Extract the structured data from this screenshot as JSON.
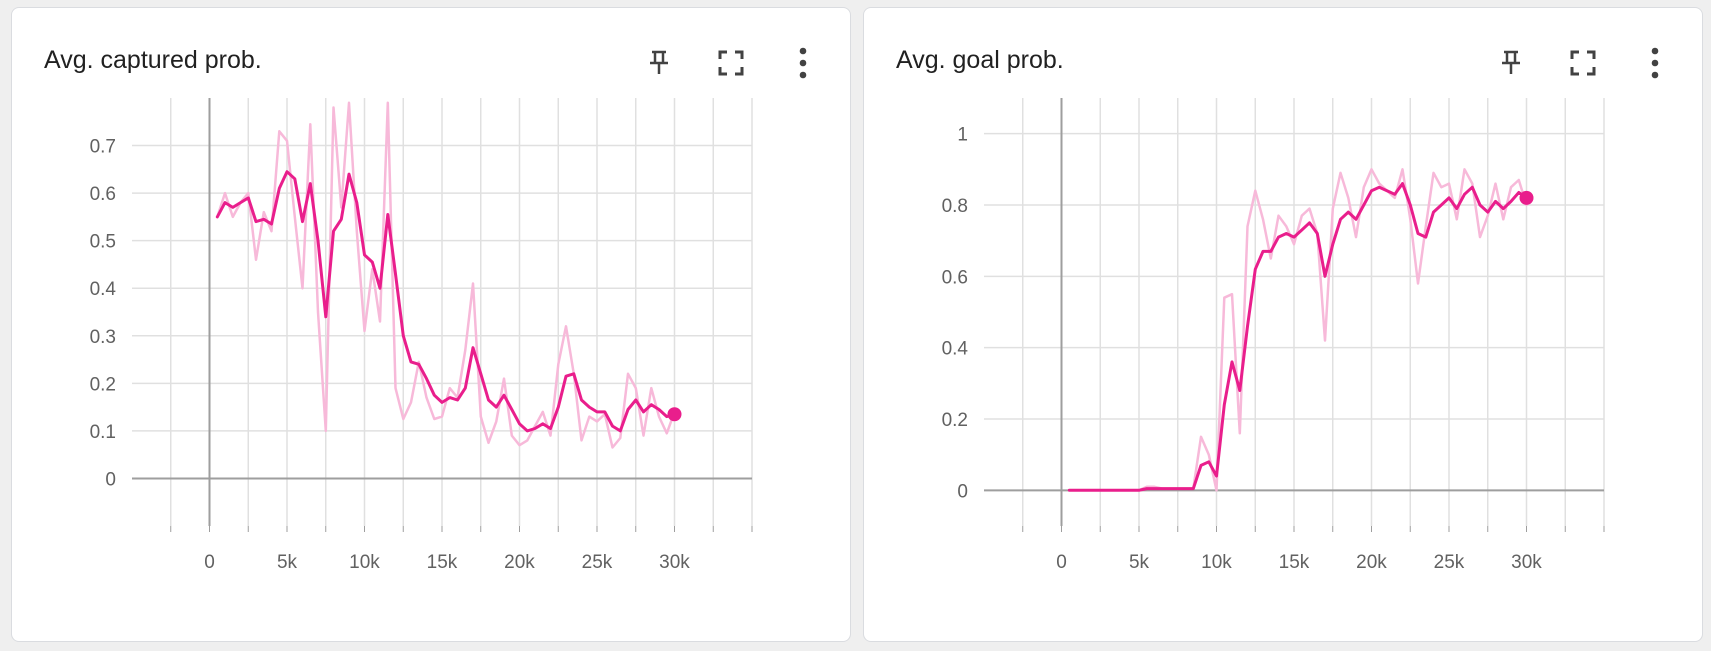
{
  "colors": {
    "raw": "#f7b9d9",
    "smoothed": "#e91e8c",
    "grid": "#e0e0e0",
    "axis": "#9e9e9e",
    "text": "#616161"
  },
  "icons": {
    "pin": "pin-icon",
    "fullscreen": "fullscreen-icon",
    "more": "more-vert-icon"
  },
  "chart_data": [
    {
      "type": "line",
      "title": "Avg. captured prob.",
      "xlim": [
        -5000,
        35000
      ],
      "ylim": [
        -0.1,
        0.8
      ],
      "x_ticks": [
        0,
        5000,
        10000,
        15000,
        20000,
        25000,
        30000
      ],
      "x_tick_labels": [
        "0",
        "5k",
        "10k",
        "15k",
        "20k",
        "25k",
        "30k"
      ],
      "y_ticks": [
        0,
        0.1,
        0.2,
        0.3,
        0.4,
        0.5,
        0.6,
        0.7
      ],
      "y_tick_labels": [
        "0",
        "0.1",
        "0.2",
        "0.3",
        "0.4",
        "0.5",
        "0.6",
        "0.7"
      ],
      "grid": true,
      "series": [
        {
          "smoothed": true,
          "x": [
            500,
            1000,
            1500,
            2000,
            2500,
            3000,
            3500,
            4000,
            4500,
            5000,
            5500,
            6000,
            6500,
            7000,
            7500,
            8000,
            8500,
            9000,
            9500,
            10000,
            10500,
            11000,
            11500,
            12000,
            12500,
            13000,
            13500,
            14000,
            14500,
            15000,
            15500,
            16000,
            16500,
            17000,
            17500,
            18000,
            18500,
            19000,
            19500,
            20000,
            20500,
            21000,
            21500,
            22000,
            22500,
            23000,
            23500,
            24000,
            24500,
            25000,
            25500,
            26000,
            26500,
            27000,
            27500,
            28000,
            28500,
            29000,
            29500,
            30000
          ],
          "y": [
            0.55,
            0.58,
            0.57,
            0.58,
            0.59,
            0.54,
            0.545,
            0.535,
            0.61,
            0.645,
            0.63,
            0.54,
            0.62,
            0.5,
            0.34,
            0.52,
            0.545,
            0.64,
            0.58,
            0.47,
            0.455,
            0.4,
            0.555,
            0.43,
            0.3,
            0.245,
            0.24,
            0.21,
            0.175,
            0.16,
            0.17,
            0.165,
            0.19,
            0.275,
            0.22,
            0.165,
            0.15,
            0.175,
            0.145,
            0.115,
            0.1,
            0.105,
            0.115,
            0.105,
            0.15,
            0.215,
            0.22,
            0.165,
            0.15,
            0.14,
            0.14,
            0.11,
            0.1,
            0.145,
            0.165,
            0.14,
            0.155,
            0.145,
            0.13,
            0.135
          ]
        },
        {
          "smoothed": false,
          "x": [
            500,
            1000,
            1500,
            2000,
            2500,
            3000,
            3500,
            4000,
            4500,
            5000,
            5500,
            6000,
            6500,
            7000,
            7500,
            8000,
            8500,
            9000,
            9500,
            10000,
            10500,
            11000,
            11500,
            12000,
            12500,
            13000,
            13500,
            14000,
            14500,
            15000,
            15500,
            16000,
            16500,
            17000,
            17500,
            18000,
            18500,
            19000,
            19500,
            20000,
            20500,
            21000,
            21500,
            22000,
            22500,
            23000,
            23500,
            24000,
            24500,
            25000,
            25500,
            26000,
            26500,
            27000,
            27500,
            28000,
            28500,
            29000,
            29500,
            30000
          ],
          "y": [
            0.55,
            0.6,
            0.55,
            0.58,
            0.6,
            0.46,
            0.56,
            0.52,
            0.73,
            0.71,
            0.55,
            0.4,
            0.745,
            0.35,
            0.1,
            0.78,
            0.57,
            0.79,
            0.52,
            0.31,
            0.44,
            0.33,
            0.79,
            0.19,
            0.125,
            0.16,
            0.245,
            0.17,
            0.125,
            0.13,
            0.19,
            0.17,
            0.27,
            0.41,
            0.13,
            0.075,
            0.12,
            0.21,
            0.09,
            0.07,
            0.08,
            0.11,
            0.14,
            0.09,
            0.24,
            0.32,
            0.22,
            0.08,
            0.13,
            0.12,
            0.135,
            0.065,
            0.085,
            0.22,
            0.19,
            0.09,
            0.19,
            0.13,
            0.095,
            0.14
          ]
        }
      ]
    },
    {
      "type": "line",
      "title": "Avg. goal prob.",
      "xlim": [
        -5000,
        35000
      ],
      "ylim": [
        -0.1,
        1.1
      ],
      "x_ticks": [
        0,
        5000,
        10000,
        15000,
        20000,
        25000,
        30000
      ],
      "x_tick_labels": [
        "0",
        "5k",
        "10k",
        "15k",
        "20k",
        "25k",
        "30k"
      ],
      "y_ticks": [
        0,
        0.2,
        0.4,
        0.6,
        0.8,
        1
      ],
      "y_tick_labels": [
        "0",
        "0.2",
        "0.4",
        "0.6",
        "0.8",
        "1"
      ],
      "grid": true,
      "series": [
        {
          "smoothed": true,
          "x": [
            500,
            1000,
            1500,
            2000,
            2500,
            3000,
            3500,
            4000,
            4500,
            5000,
            5500,
            6000,
            6500,
            7000,
            7500,
            8000,
            8500,
            9000,
            9500,
            10000,
            10500,
            11000,
            11500,
            12000,
            12500,
            13000,
            13500,
            14000,
            14500,
            15000,
            15500,
            16000,
            16500,
            17000,
            17500,
            18000,
            18500,
            19000,
            19500,
            20000,
            20500,
            21000,
            21500,
            22000,
            22500,
            23000,
            23500,
            24000,
            24500,
            25000,
            25500,
            26000,
            26500,
            27000,
            27500,
            28000,
            28500,
            29000,
            29500,
            30000
          ],
          "y": [
            0,
            0,
            0,
            0,
            0,
            0,
            0,
            0,
            0,
            0,
            0.005,
            0.005,
            0.005,
            0.005,
            0.005,
            0.005,
            0.005,
            0.07,
            0.08,
            0.04,
            0.24,
            0.36,
            0.28,
            0.46,
            0.62,
            0.67,
            0.67,
            0.71,
            0.72,
            0.71,
            0.73,
            0.75,
            0.72,
            0.6,
            0.69,
            0.76,
            0.78,
            0.76,
            0.8,
            0.84,
            0.85,
            0.84,
            0.83,
            0.86,
            0.8,
            0.72,
            0.71,
            0.78,
            0.8,
            0.82,
            0.79,
            0.83,
            0.85,
            0.8,
            0.78,
            0.81,
            0.79,
            0.81,
            0.835,
            0.82
          ]
        },
        {
          "smoothed": false,
          "x": [
            500,
            1000,
            1500,
            2000,
            2500,
            3000,
            3500,
            4000,
            4500,
            5000,
            5500,
            6000,
            6500,
            7000,
            7500,
            8000,
            8500,
            9000,
            9500,
            10000,
            10500,
            11000,
            11500,
            12000,
            12500,
            13000,
            13500,
            14000,
            14500,
            15000,
            15500,
            16000,
            16500,
            17000,
            17500,
            18000,
            18500,
            19000,
            19500,
            20000,
            20500,
            21000,
            21500,
            22000,
            22500,
            23000,
            23500,
            24000,
            24500,
            25000,
            25500,
            26000,
            26500,
            27000,
            27500,
            28000,
            28500,
            29000,
            29500,
            30000
          ],
          "y": [
            0,
            0,
            0,
            0,
            0,
            0,
            0,
            0,
            0,
            0,
            0.01,
            0.01,
            0.005,
            0.005,
            0.005,
            0.005,
            0.005,
            0.15,
            0.1,
            0,
            0.54,
            0.55,
            0.16,
            0.74,
            0.84,
            0.76,
            0.65,
            0.77,
            0.74,
            0.69,
            0.77,
            0.79,
            0.72,
            0.42,
            0.79,
            0.89,
            0.82,
            0.71,
            0.85,
            0.9,
            0.86,
            0.84,
            0.82,
            0.9,
            0.76,
            0.58,
            0.74,
            0.89,
            0.85,
            0.86,
            0.76,
            0.9,
            0.86,
            0.71,
            0.77,
            0.86,
            0.76,
            0.85,
            0.87,
            0.8
          ]
        }
      ]
    }
  ]
}
